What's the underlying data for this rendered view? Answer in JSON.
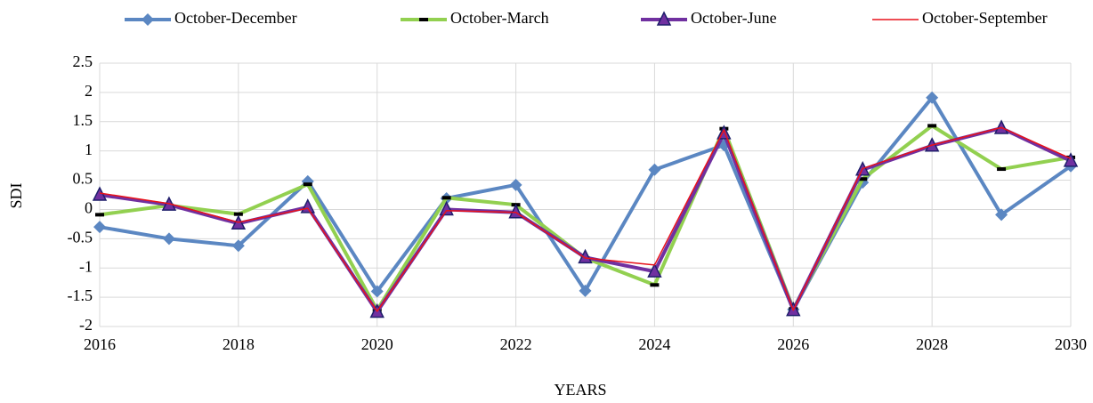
{
  "chart_data": {
    "type": "line",
    "x_label": "YEARS",
    "y_label": "SDI",
    "x": [
      2016,
      2017,
      2018,
      2019,
      2020,
      2021,
      2022,
      2023,
      2024,
      2025,
      2026,
      2027,
      2028,
      2029,
      2030
    ],
    "xlim": [
      2016,
      2030
    ],
    "xticks": [
      2016,
      2018,
      2020,
      2022,
      2024,
      2026,
      2028,
      2030
    ],
    "ylim": [
      -2,
      2.5
    ],
    "yticks": [
      -2,
      -1.5,
      -1,
      -0.5,
      0,
      0.5,
      1,
      1.5,
      2,
      2.5
    ],
    "grid": true,
    "legend": "top",
    "series": [
      {
        "name": "October-December",
        "color": "#5b87c2",
        "marker": "diamond",
        "values": [
          -0.3,
          -0.5,
          -0.62,
          0.48,
          -1.4,
          0.19,
          0.42,
          -1.39,
          0.68,
          1.1,
          -1.71,
          0.46,
          1.91,
          -0.09,
          0.74
        ]
      },
      {
        "name": "October-March",
        "color": "#92d050",
        "marker": "dash",
        "values": [
          -0.09,
          0.07,
          -0.08,
          0.43,
          -1.72,
          0.2,
          0.08,
          -0.83,
          -1.29,
          1.38,
          -1.7,
          0.52,
          1.43,
          0.69,
          0.89
        ]
      },
      {
        "name": "October-June",
        "color": "#7030a0",
        "marker": "triangle",
        "values": [
          0.25,
          0.08,
          -0.24,
          0.04,
          -1.75,
          0,
          -0.05,
          -0.82,
          -1.06,
          1.3,
          -1.72,
          0.68,
          1.09,
          1.39,
          0.83
        ]
      },
      {
        "name": "October-September",
        "color": "#e8121b",
        "marker": "none",
        "values": [
          0.28,
          0.1,
          -0.22,
          0.02,
          -1.74,
          -0.02,
          -0.05,
          -0.83,
          -0.95,
          1.36,
          -1.72,
          0.7,
          1.1,
          1.4,
          0.87
        ]
      }
    ]
  }
}
